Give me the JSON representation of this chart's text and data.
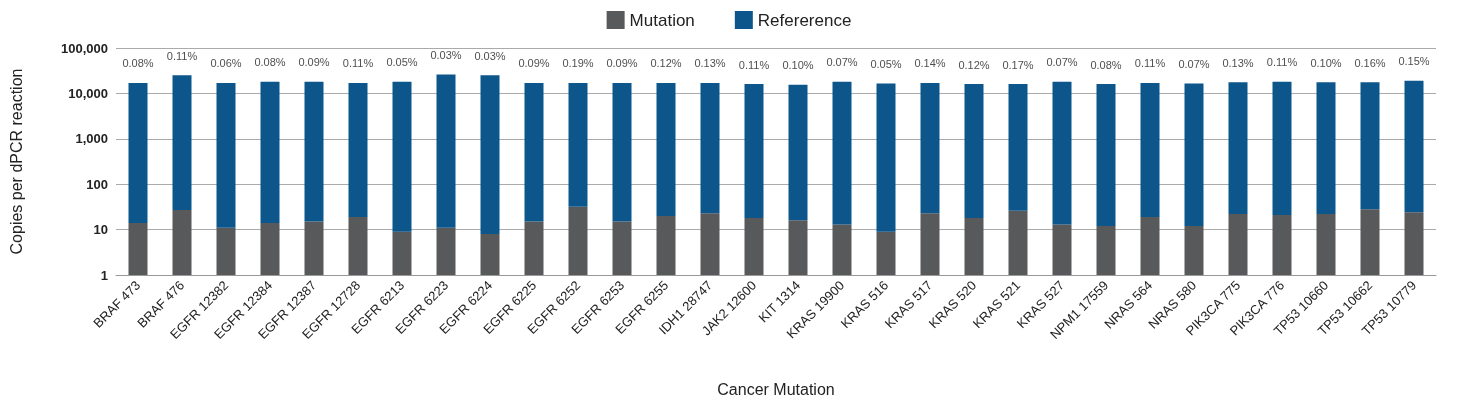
{
  "chart_data": {
    "type": "bar",
    "xlabel": "Cancer Mutation",
    "ylabel": "Copies per dPCR reaction",
    "categories": [
      "BRAF 473",
      "BRAF 476",
      "EGFR 12382",
      "EGFR 12384",
      "EGFR 12387",
      "EGFR 12728",
      "EGFR 6213",
      "EGFR 6223",
      "EGFR 6224",
      "EGFR 6225",
      "EGFR 6252",
      "EGFR 6253",
      "EGFR 6255",
      "IDH1 28747",
      "JAK2 12600",
      "KIT 1314",
      "KRAS 19900",
      "KRAS 516",
      "KRAS 517",
      "KRAS 520",
      "KRAS 521",
      "KRAS 527",
      "NPM1 17559",
      "NRAS 564",
      "NRAS 580",
      "PIK3CA 775",
      "PIK3CA 776",
      "TP53 10660",
      "TP53 10662",
      "TP53 10779"
    ],
    "series": [
      {
        "name": "Mutation",
        "color": "#58595b",
        "values": [
          14,
          27,
          11,
          14,
          15,
          19,
          9,
          11,
          8,
          15,
          32,
          15,
          20,
          23,
          18,
          16,
          13,
          9,
          23,
          18,
          26,
          13,
          12,
          19,
          12,
          22,
          21,
          22,
          28,
          24
        ]
      },
      {
        "name": "Refererence",
        "color": "#0d568c",
        "values": [
          17000,
          25000,
          17000,
          18000,
          18000,
          17000,
          18000,
          26000,
          25000,
          17000,
          17000,
          17000,
          17000,
          17000,
          16000,
          15500,
          18000,
          16500,
          17000,
          16000,
          16000,
          18000,
          16000,
          17000,
          16500,
          17500,
          18000,
          17500,
          17500,
          19000
        ]
      }
    ],
    "annotations": [
      {
        "text": "0.08%",
        "x": "BRAF 473",
        "y": 17000
      },
      {
        "text": "0.11%",
        "x": "BRAF 476",
        "y": 25000
      },
      {
        "text": "0.06%",
        "x": "EGFR 12382",
        "y": 17000
      },
      {
        "text": "0.08%",
        "x": "EGFR 12384",
        "y": 18000
      },
      {
        "text": "0.09%",
        "x": "EGFR 12387",
        "y": 18000
      },
      {
        "text": "0.11%",
        "x": "EGFR 12728",
        "y": 17000
      },
      {
        "text": "0.05%",
        "x": "EGFR 6213",
        "y": 18000
      },
      {
        "text": "0.03%",
        "x": "EGFR 6223",
        "y": 26000
      },
      {
        "text": "0.03%",
        "x": "EGFR 6224",
        "y": 25000
      },
      {
        "text": "0.09%",
        "x": "EGFR 6225",
        "y": 17000
      },
      {
        "text": "0.19%",
        "x": "EGFR 6252",
        "y": 17000
      },
      {
        "text": "0.09%",
        "x": "EGFR 6253",
        "y": 17000
      },
      {
        "text": "0.12%",
        "x": "EGFR 6255",
        "y": 17000
      },
      {
        "text": "0.13%",
        "x": "IDH1 28747",
        "y": 17000
      },
      {
        "text": "0.11%",
        "x": "JAK2 12600",
        "y": 16000
      },
      {
        "text": "0.10%",
        "x": "KIT 1314",
        "y": 15500
      },
      {
        "text": "0.07%",
        "x": "KRAS 19900",
        "y": 18000
      },
      {
        "text": "0.05%",
        "x": "KRAS 516",
        "y": 16500
      },
      {
        "text": "0.14%",
        "x": "KRAS 517",
        "y": 17000
      },
      {
        "text": "0.12%",
        "x": "KRAS 520",
        "y": 16000
      },
      {
        "text": "0.17%",
        "x": "KRAS 521",
        "y": 16000
      },
      {
        "text": "0.07%",
        "x": "KRAS 527",
        "y": 18000
      },
      {
        "text": "0.08%",
        "x": "NPM1 17559",
        "y": 16000
      },
      {
        "text": "0.11%",
        "x": "NRAS 564",
        "y": 17000
      },
      {
        "text": "0.07%",
        "x": "NRAS 580",
        "y": 16500
      },
      {
        "text": "0.13%",
        "x": "PIK3CA 775",
        "y": 17500
      },
      {
        "text": "0.11%",
        "x": "PIK3CA 776",
        "y": 18000
      },
      {
        "text": "0.10%",
        "x": "TP53 10660",
        "y": 17500
      },
      {
        "text": "0.16%",
        "x": "TP53 10662",
        "y": 17500
      },
      {
        "text": "0.15%",
        "x": "TP53 10779",
        "y": 19000
      }
    ],
    "stacked": true,
    "log": "y",
    "ylim": [
      1,
      100000
    ],
    "yticks": [
      {
        "value": 1,
        "label": "1"
      },
      {
        "value": 10,
        "label": "10"
      },
      {
        "value": 100,
        "label": "100"
      },
      {
        "value": 1000,
        "label": "1,000"
      },
      {
        "value": 10000,
        "label": "10,000"
      },
      {
        "value": 100000,
        "label": "100,000"
      }
    ],
    "grid": "y",
    "legend": "top"
  }
}
